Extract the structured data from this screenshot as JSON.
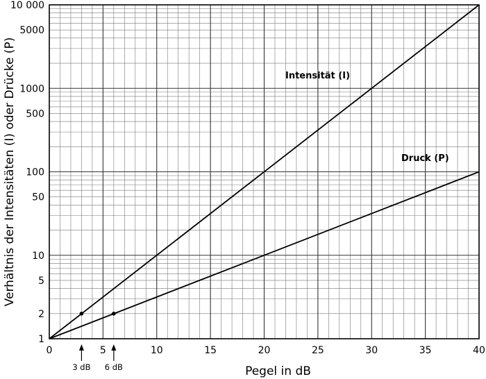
{
  "chart_data": {
    "type": "line",
    "xlabel": "Pegel in dB",
    "ylabel": "Verhältnis der Intensitäten (I) oder Drücke (P)",
    "xlim": [
      0,
      40
    ],
    "ylim": [
      1,
      10000
    ],
    "yscale": "log",
    "grid": true,
    "x_ticks": [
      {
        "value": 0,
        "label": "0"
      },
      {
        "value": 5,
        "label": "5"
      },
      {
        "value": 10,
        "label": "10"
      },
      {
        "value": 15,
        "label": "15"
      },
      {
        "value": 20,
        "label": "20"
      },
      {
        "value": 25,
        "label": "25"
      },
      {
        "value": 30,
        "label": "30"
      },
      {
        "value": 35,
        "label": "35"
      },
      {
        "value": 40,
        "label": "40"
      }
    ],
    "y_ticks": [
      {
        "value": 1,
        "label": "1"
      },
      {
        "value": 2,
        "label": "2"
      },
      {
        "value": 5,
        "label": "5"
      },
      {
        "value": 10,
        "label": "10"
      },
      {
        "value": 50,
        "label": "50"
      },
      {
        "value": 100,
        "label": "100"
      },
      {
        "value": 500,
        "label": "500"
      },
      {
        "value": 1000,
        "label": "1000"
      },
      {
        "value": 5000,
        "label": "5000"
      },
      {
        "value": 10000,
        "label": "10 000"
      }
    ],
    "series": [
      {
        "name": "Intensität (I)",
        "x": [
          0,
          40
        ],
        "y": [
          1,
          10000
        ]
      },
      {
        "name": "Druck (P)",
        "x": [
          0,
          40
        ],
        "y": [
          1,
          100
        ]
      }
    ],
    "points": [
      {
        "x": 3,
        "y": 2
      },
      {
        "x": 6,
        "y": 2
      }
    ],
    "annotations": [
      {
        "x": 3,
        "label": "3 dB"
      },
      {
        "x": 6,
        "label": "6 dB"
      }
    ]
  }
}
